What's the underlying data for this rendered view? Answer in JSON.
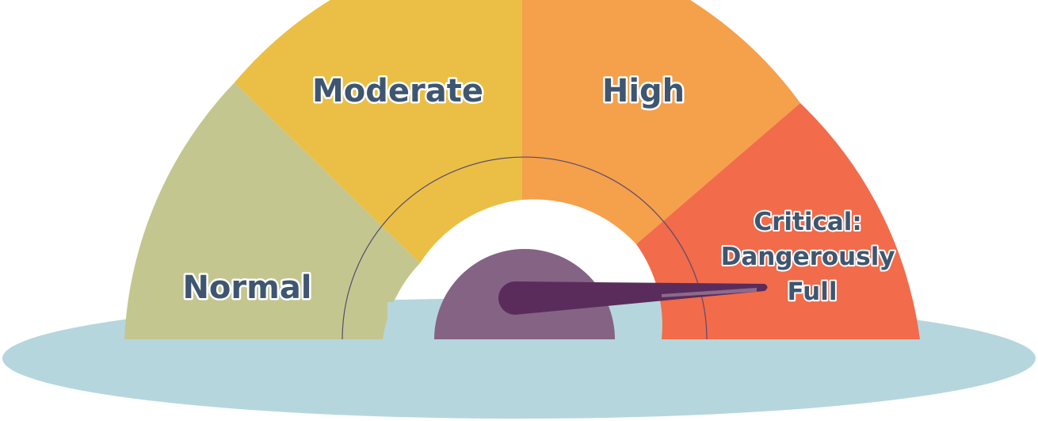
{
  "gauge": {
    "level": "Critical: Dangerously Full",
    "zones": [
      {
        "id": "normal",
        "lines": [
          "Normal"
        ],
        "color": "#c4c68f"
      },
      {
        "id": "moderate",
        "lines": [
          "Moderate"
        ],
        "color": "#ebbf45"
      },
      {
        "id": "high",
        "lines": [
          "High"
        ],
        "color": "#f5a04a"
      },
      {
        "id": "critical",
        "lines": [
          "Critical:",
          "Dangerously",
          "Full"
        ],
        "color": "#f26b4a"
      }
    ],
    "colors": {
      "water": "#b6d6de",
      "hub": "#856385",
      "needle": "#5a2c5b",
      "needle_highlight": "#8c6a8c",
      "label_text": "#3f5670"
    }
  }
}
